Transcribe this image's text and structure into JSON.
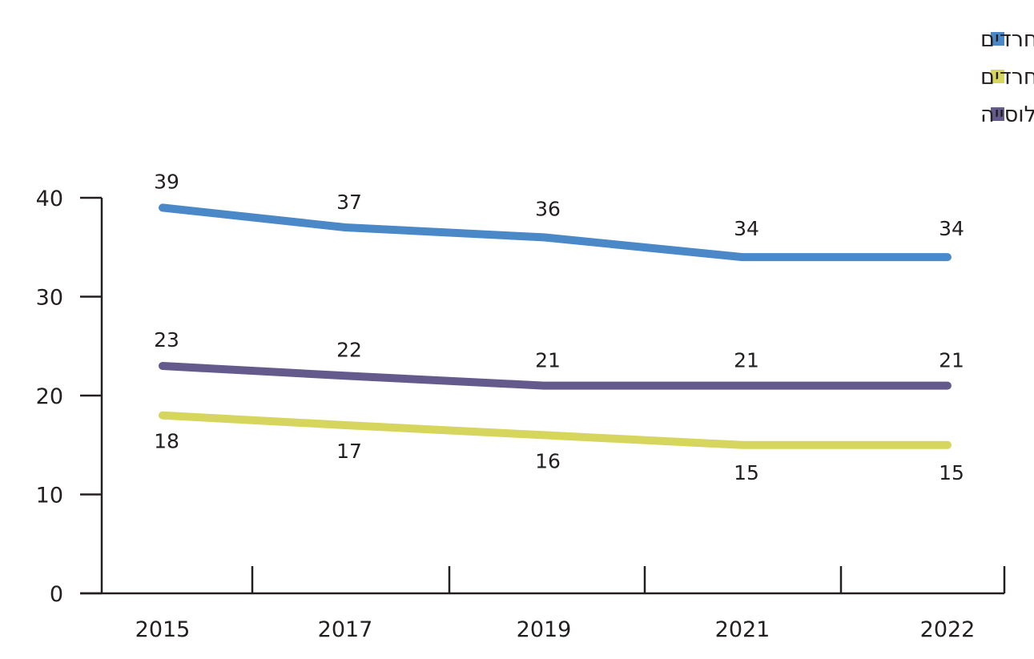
{
  "chart_data": {
    "type": "line",
    "title": "",
    "xlabel": "",
    "ylabel": "",
    "categories": [
      "2015",
      "2017",
      "2019",
      "2021",
      "2022"
    ],
    "ylim": [
      0,
      40
    ],
    "yticks": [
      0,
      10,
      20,
      30,
      40
    ],
    "grid": false,
    "legend_position": "top-right",
    "series": [
      {
        "name": "חרדים",
        "color": "#4a88c7",
        "values": [
          39,
          37,
          36,
          34,
          34
        ]
      },
      {
        "name": "יהודים לא־חרדים",
        "color": "#d6d55e",
        "values": [
          18,
          17,
          16,
          15,
          15
        ]
      },
      {
        "name": "כלל האוכלוסייה",
        "color": "#645a8c",
        "values": [
          23,
          22,
          21,
          21,
          21
        ]
      }
    ]
  }
}
